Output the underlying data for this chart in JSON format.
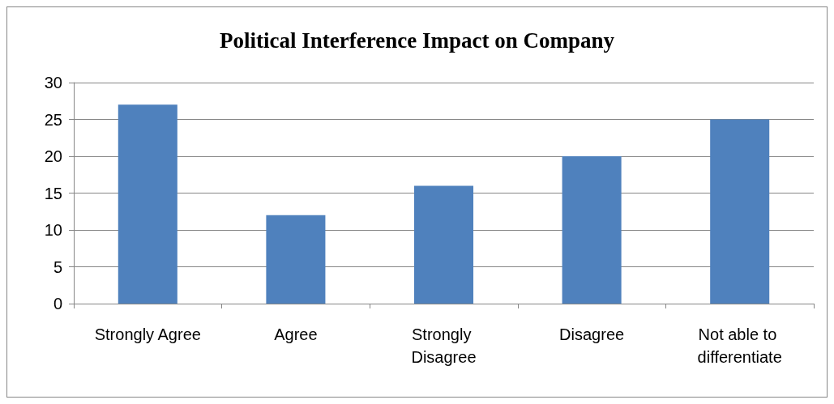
{
  "chart_data": {
    "type": "bar",
    "title": "Political Interference Impact on Company",
    "categories": [
      "Strongly Agree",
      "Agree",
      "Strongly Disagree",
      "Disagree",
      "Not able to differentiate"
    ],
    "values": [
      27,
      12,
      16,
      20,
      25
    ],
    "color": "#4f81bd",
    "ylim": [
      0,
      30
    ],
    "yticks": [
      0,
      5,
      10,
      15,
      20,
      25,
      30
    ],
    "grid": "y"
  }
}
